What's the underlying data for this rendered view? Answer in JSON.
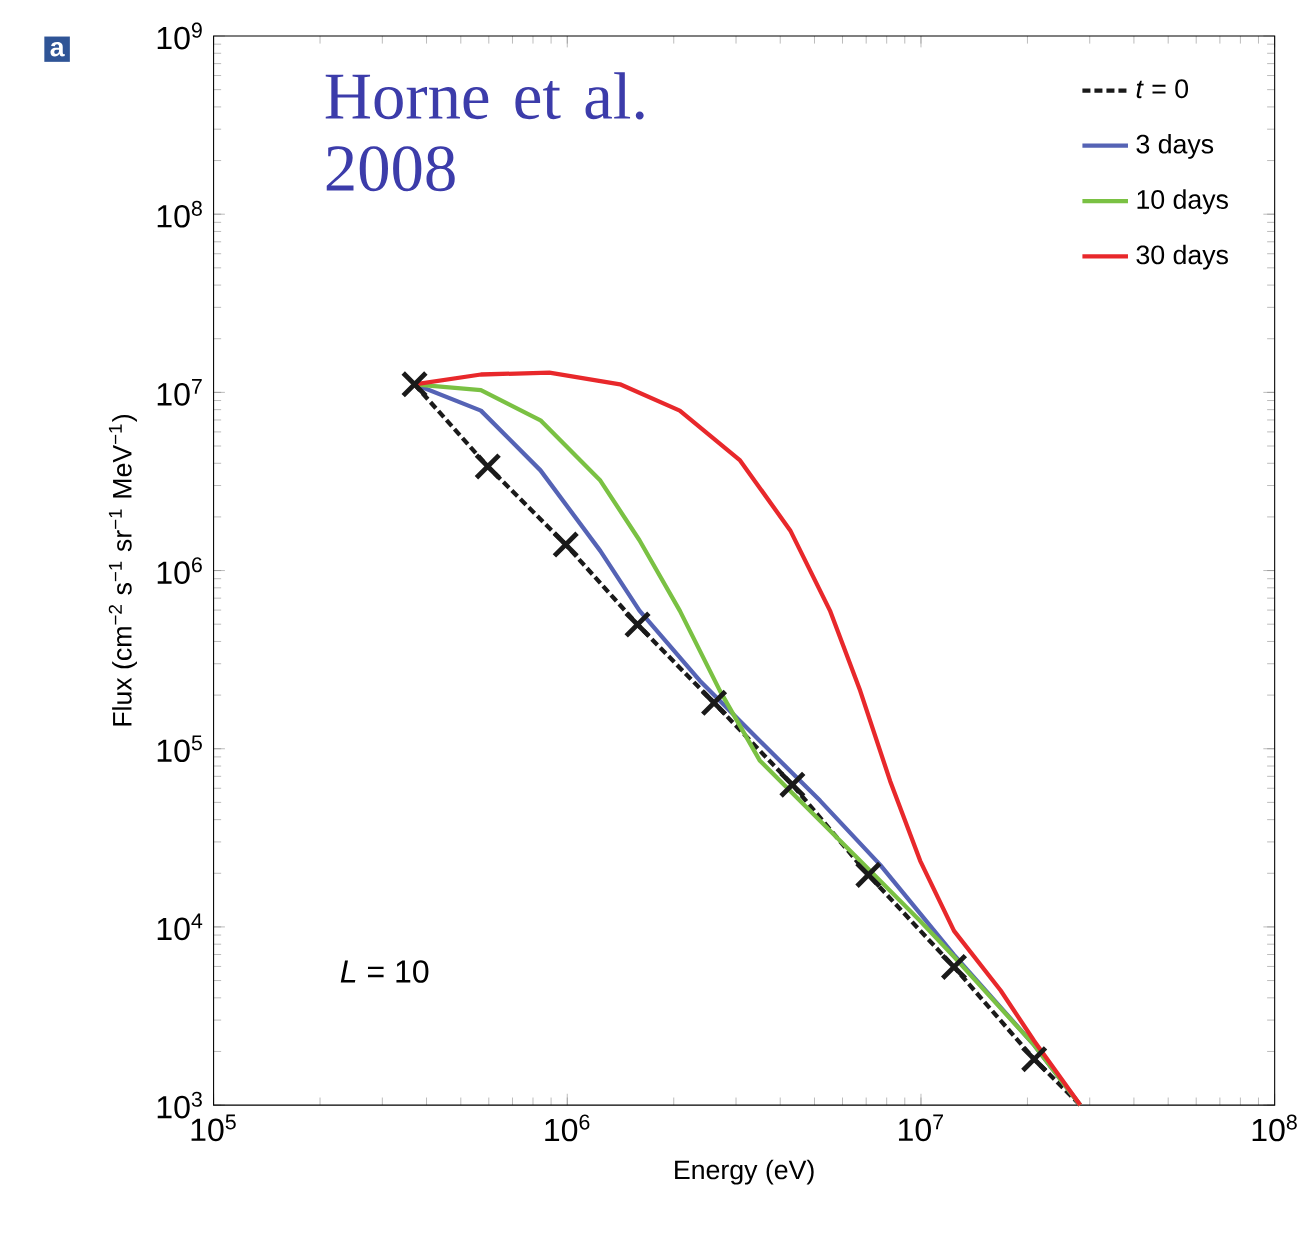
{
  "chart_data": {
    "type": "line",
    "xlabel": "Energy (eV)",
    "ylabel": "Flux (cm$^{−2}$ s$^{−1}$ sr$^{−1}$ MeV$^{−1}$)",
    "log": "xy",
    "xlim": [
      100000,
      100000000
    ],
    "ylim": [
      1000,
      1000000000
    ],
    "xticks": [
      {
        "value": 100000,
        "label": "10$^{5}$"
      },
      {
        "value": 1000000,
        "label": "10$^{6}$"
      },
      {
        "value": 10000000,
        "label": "10$^{7}$"
      },
      {
        "value": 100000000,
        "label": "10$^{8}$"
      }
    ],
    "yticks": [
      {
        "value": 1000,
        "label": "10$^{3}$"
      },
      {
        "value": 10000,
        "label": "10$^{4}$"
      },
      {
        "value": 100000,
        "label": "10$^{5}$"
      },
      {
        "value": 1000000,
        "label": "10$^{6}$"
      },
      {
        "value": 10000000,
        "label": "10$^{7}$"
      },
      {
        "value": 100000000,
        "label": "10$^{8}$"
      },
      {
        "value": 1000000000,
        "label": "10$^{9}$"
      }
    ],
    "legend": "top right",
    "annotations": [
      "a",
      "Horne et al. 2008",
      "*L* = 10"
    ],
    "series": [
      {
        "name": "*t* = 0",
        "color": "#1a1a1a",
        "line_style": "dashed",
        "x": [
          370000,
          596000,
          990000,
          1580000,
          2600000,
          4330000,
          7100000,
          12400000,
          20900000,
          28200000
        ],
        "values": [
          11100000,
          3840000,
          1400000,
          498000,
          181000,
          62800,
          19600,
          5960,
          1810,
          1000
        ]
      },
      {
        "name": "3 days",
        "color": "#5563b5",
        "x": [
          370000,
          570000,
          840000,
          1240000,
          1600000,
          2370000,
          3500000,
          5190000,
          7670000,
          12400000,
          20900000,
          28200000
        ],
        "values": [
          11100000,
          7900000,
          3650000,
          1290000,
          596000,
          241000,
          111000,
          51000,
          22300,
          6970,
          2170,
          1000
        ]
      },
      {
        "name": "10 days",
        "color": "#7ac143",
        "x": [
          370000,
          570000,
          840000,
          1240000,
          1600000,
          2080000,
          2700000,
          3500000,
          4550000,
          6730000,
          9950000,
          12400000,
          20900000,
          28200000
        ],
        "values": [
          11100000,
          10300000,
          6970000,
          3200000,
          1480000,
          596000,
          212000,
          86000,
          51000,
          23500,
          10800,
          6800,
          2170,
          1000
        ]
      },
      {
        "name": "30 days",
        "color": "#e8282b",
        "x": [
          370000,
          570000,
          890000,
          1410000,
          2080000,
          3080000,
          4270000,
          5530000,
          6730000,
          8180000,
          9950000,
          12400000,
          16800000,
          20900000,
          28200000
        ],
        "values": [
          11100000,
          12600000,
          12900000,
          11100000,
          7900000,
          4150000,
          1680000,
          596000,
          212000,
          66000,
          23500,
          9500,
          4400,
          2290,
          1000
        ]
      },
      {
        "type": "scatter",
        "marker": "cross",
        "color": "#1a1a1a",
        "x": [
          370000,
          596000,
          990000,
          1580000,
          2600000,
          4330000,
          7100000,
          12400000,
          20900000
        ],
        "values": [
          11100000,
          3840000,
          1400000,
          498000,
          181000,
          62800,
          19600,
          5960,
          1810
        ]
      }
    ]
  }
}
